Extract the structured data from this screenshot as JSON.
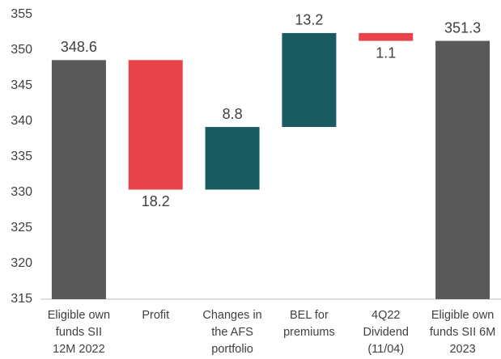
{
  "chart_data": {
    "type": "waterfall",
    "categories": [
      "Eligible own\nfunds SII\n12M 2022",
      "Profit",
      "Changes in\nthe AFS\nportfolio",
      "BEL for\npremiums",
      "4Q22\nDividend\n(11/04)",
      "Eligible own\nfunds SII 6M\n2023"
    ],
    "values": [
      348.6,
      -18.2,
      8.8,
      13.2,
      -1.1,
      351.3
    ],
    "value_labels": [
      "348.6",
      "18.2",
      "8.8",
      "13.2",
      "1.1",
      "351.3"
    ],
    "total": [
      true,
      false,
      false,
      false,
      false,
      true
    ],
    "colors": [
      "#595959",
      "#e8434b",
      "#1a5b62",
      "#1a5b62",
      "#e8434b",
      "#595959"
    ],
    "ylim": [
      315,
      355
    ],
    "yticks": [
      315,
      320,
      325,
      330,
      335,
      340,
      345,
      350,
      355
    ],
    "grid": false
  }
}
